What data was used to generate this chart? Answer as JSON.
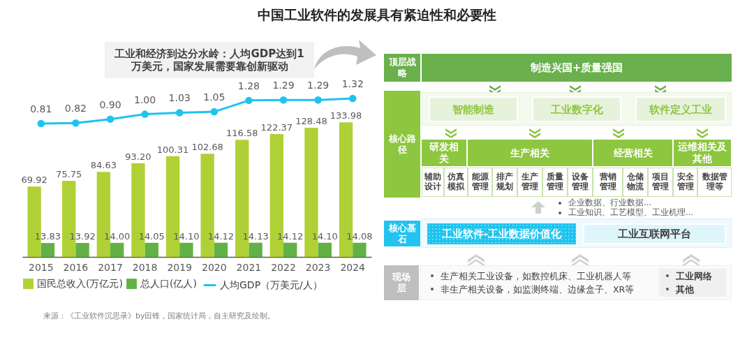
{
  "chart_data": [
    {
      "type": "bar",
      "title": "中国工业软件的发展具有紧迫性和必要性",
      "categories": [
        "2015",
        "2016",
        "2017",
        "2018",
        "2019",
        "2020",
        "2021",
        "2022",
        "2023",
        "2024"
      ],
      "legend": "bottom",
      "tick_labels": "x",
      "ylim": [
        0,
        214
      ],
      "y2lim": [
        -1.9,
        2.47
      ],
      "marker": "circle",
      "series": [
        {
          "name": "国民总收入(万亿元)",
          "color": "#afd136",
          "values": [
            69.92,
            75.75,
            84.63,
            93.2,
            100.31,
            102.68,
            116.58,
            122.37,
            128.48,
            133.98
          ],
          "value_labels": [
            "69.92",
            "75.75",
            "84.63",
            "93.20",
            "100.31",
            "102.68",
            "116.58",
            "122.37",
            "128.48",
            "133.98"
          ]
        },
        {
          "name": "总人口(亿人)",
          "color": "#62b146",
          "values": [
            13.83,
            13.92,
            14,
            14.05,
            14.1,
            14.12,
            14.13,
            14.12,
            14.1,
            14.08
          ],
          "value_labels": [
            "13.83",
            "13.92",
            "14.00",
            "14.05",
            "14.10",
            "14.12",
            "14.13",
            "14.12",
            "14.10",
            "14.08"
          ]
        },
        {
          "name": "人均GDP（万美元/人）",
          "type": "line",
          "axis": "y2",
          "color": "#1ec3ef",
          "values": [
            0.81,
            0.82,
            0.9,
            1,
            1.03,
            1.05,
            1.28,
            1.29,
            1.29,
            1.32
          ],
          "value_labels": [
            "0.81",
            "0.82",
            "0.90",
            "1.00",
            "1.03",
            "1.05",
            "1.28",
            "1.29",
            "1.29",
            "1.32"
          ]
        }
      ],
      "annotations": [
        "工业和经济到达分水岭：人均GDP达到1万美元，国家发展需要靠创新驱动",
        "来源：《工业软件沉思录》by田锋，国家统计局，自主研究及绘制。"
      ]
    },
    {
      "type": "other",
      "annotations": [
        "顶层战略",
        "制造兴国+质量强国",
        "核心路径",
        "智能制造",
        "工业数字化",
        "软件定义工业",
        "研发相关",
        "生产相关",
        "经营相关",
        "运维相关及其他",
        "辅助设计",
        "仿真模拟",
        "能源管理",
        "排产规划",
        "生产管理",
        "质量管理",
        "设备管理",
        "营销管理",
        "仓储物流",
        "项目管理",
        "安全管理",
        "数据管理等",
        "企业数据、行业数据...",
        "工业知识、工艺模型、工业机理...",
        "核心基石",
        "工业软件-工业数据价值化",
        "工业互联网平台",
        "现场层",
        "生产相关工业设备，如数控机床、工业机器人等",
        "非生产相关设备，如监测终端、边缘盒子、XR等",
        "工业网络",
        "其他"
      ]
    }
  ]
}
